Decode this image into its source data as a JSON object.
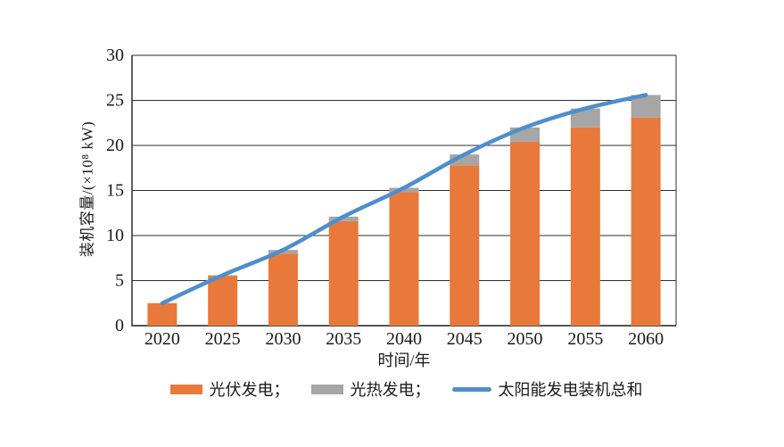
{
  "page": {
    "background": "#FFFFFF"
  },
  "chart_data": {
    "type": "bar",
    "subtype": "stacked-bars-with-total-line",
    "title": "",
    "xlabel": "时间/年",
    "ylabel": "装机容量/(×10⁸ kW)",
    "categories": [
      "2020",
      "2025",
      "2030",
      "2035",
      "2040",
      "2045",
      "2050",
      "2055",
      "2060"
    ],
    "series": [
      {
        "name": "光伏发电",
        "kind": "bar",
        "color": "#E8793A",
        "values": [
          2.5,
          5.5,
          8.0,
          11.6,
          14.8,
          17.8,
          20.4,
          22.0,
          23.1
        ]
      },
      {
        "name": "光热发电",
        "kind": "bar",
        "color": "#A6A6A6",
        "values": [
          0.0,
          0.1,
          0.4,
          0.5,
          0.5,
          1.2,
          1.6,
          2.1,
          2.5
        ]
      },
      {
        "name": "太阳能发电装机总和",
        "kind": "line",
        "color": "#4E8ECB",
        "values": [
          2.5,
          5.6,
          8.4,
          12.1,
          15.3,
          19.0,
          22.0,
          24.1,
          25.6
        ]
      }
    ],
    "ylim": [
      0,
      30
    ],
    "yticks": [
      0,
      5,
      10,
      15,
      20,
      25,
      30
    ],
    "grid": true,
    "legend_position": "bottom"
  },
  "axes": {
    "x_title": "时间/年",
    "y_title": "装机容量/(×10⁸ kW)"
  },
  "legend": {
    "items": [
      {
        "label": "光伏发电；",
        "swatch": "bar",
        "color": "#E8793A"
      },
      {
        "label": "光热发电；",
        "swatch": "bar",
        "color": "#A6A6A6"
      },
      {
        "label": "太阳能发电装机总和",
        "swatch": "line",
        "color": "#4E8ECB"
      }
    ]
  },
  "colors": {
    "grid": "#2F2F2F",
    "axis": "#1F1F1F",
    "text": "#1A1A1A"
  }
}
